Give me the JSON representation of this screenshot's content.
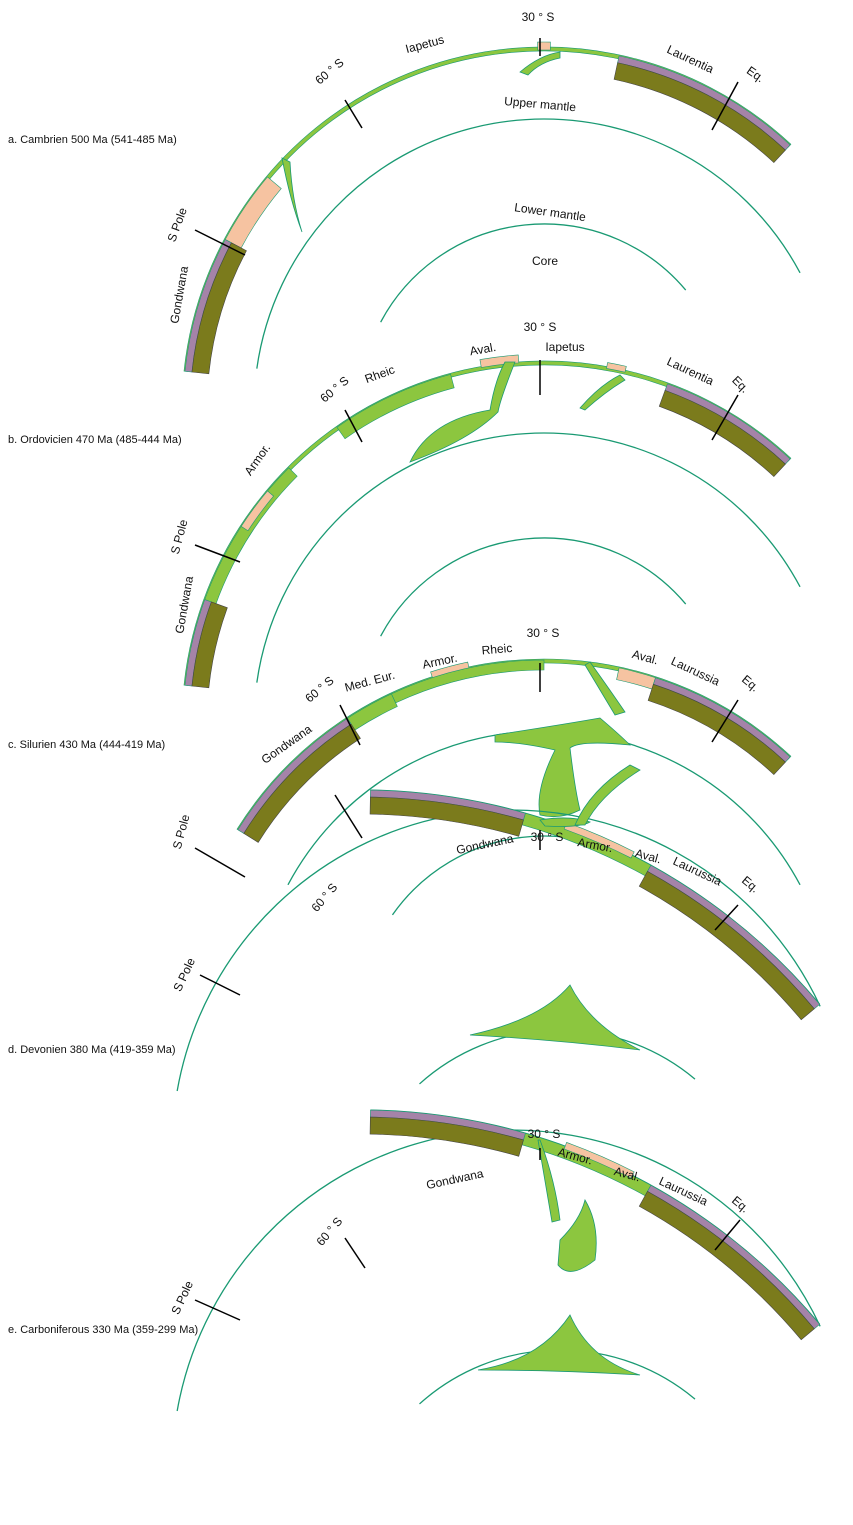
{
  "panels": [
    {
      "caption": "a. Cambrien 500 Ma (541-485 Ma)",
      "labels": [
        "30 ° S",
        "60 ° S",
        "Iapetus",
        "Upper mantle",
        "Lower mantle",
        "Core",
        "Laurentia",
        "Eq.",
        "S Pole",
        "Gondwana"
      ]
    },
    {
      "caption": "b. Ordovicien 470 Ma (485-444 Ma)",
      "labels": [
        "30 ° S",
        "60 ° S",
        "Rheic",
        "Aval.",
        "Iapetus",
        "Laurentia",
        "Eq.",
        "Armor.",
        "S Pole",
        "Gondwana"
      ]
    },
    {
      "caption": "c. Silurien 430 Ma (444-419 Ma)",
      "labels": [
        "30 ° S",
        "60 ° S",
        "Med. Eur.",
        "Armor.",
        "Rheic",
        "Aval.",
        "Laurussia",
        "Eq.",
        "Gondwana",
        "S Pole"
      ]
    },
    {
      "caption": "d. Devonien 380 Ma (419-359 Ma)",
      "labels": [
        "Gondwana",
        "30 ° S",
        "Armor.",
        "Aval.",
        "Laurussia",
        "Eq.",
        "60 ° S",
        "S Pole"
      ]
    },
    {
      "caption": "e. Carboniferous 330 Ma (359-299 Ma)",
      "labels": [
        "30 ° S",
        "Gondwana",
        "Armor.",
        "Aval.",
        "Laurussia",
        "Eq.",
        "60 ° S",
        "S Pole"
      ]
    }
  ]
}
